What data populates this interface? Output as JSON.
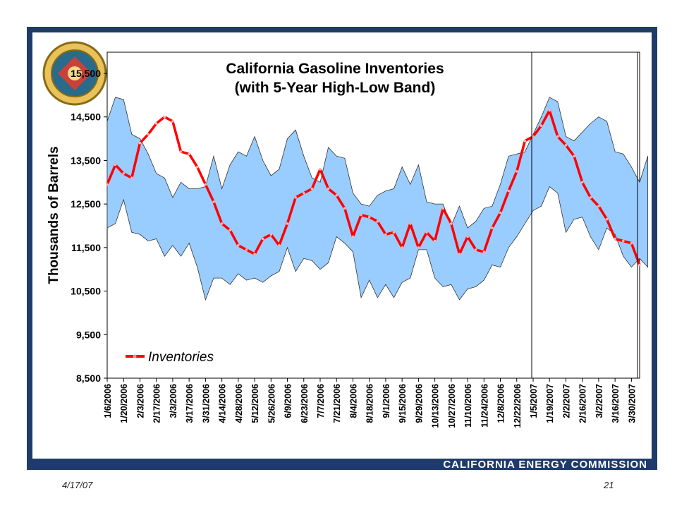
{
  "footer": {
    "date": "4/17/07",
    "page": "21",
    "organization": "CALIFORNIA ENERGY COMMISSION"
  },
  "logo": {
    "icon": "california-energy-commission-seal"
  },
  "colors": {
    "band": "#99ccff",
    "line": "#ff0000",
    "frame": "#1f3b6b"
  },
  "chart_data": {
    "type": "line",
    "title": "California Gasoline Inventories",
    "subtitle": "(with 5-Year High-Low Band)",
    "ylabel": "Thousands of Barrels",
    "xlabel": "",
    "ylim": [
      8500,
      15500
    ],
    "yticks": [
      8500,
      9500,
      10500,
      11500,
      12500,
      13500,
      14500,
      15500
    ],
    "ytick_labels": [
      "8,500",
      "9,500",
      "10,500",
      "11,500",
      "12,500",
      "13,500",
      "14,500",
      "15,500"
    ],
    "xtick_labels": [
      "1/6/2006",
      "1/20/2006",
      "2/3/2006",
      "2/17/2006",
      "3/3/2006",
      "3/17/2006",
      "3/31/2006",
      "4/14/2006",
      "4/28/2006",
      "5/12/2006",
      "5/26/2006",
      "6/9/2006",
      "6/23/2006",
      "7/7/2006",
      "7/21/2006",
      "8/4/2006",
      "8/18/2006",
      "9/1/2006",
      "9/15/2006",
      "9/29/2006",
      "10/13/2006",
      "10/27/2006",
      "11/10/2006",
      "11/24/2006",
      "12/8/2006",
      "12/22/2006",
      "1/5/2007",
      "1/19/2007",
      "2/2/2007",
      "2/16/2007",
      "3/2/2007",
      "3/16/2007",
      "3/30/2007"
    ],
    "x_start": "1/6/2006",
    "x_step_days": 7,
    "band_high": [
      14400,
      14950,
      14900,
      14100,
      14000,
      13650,
      13200,
      13100,
      12650,
      13000,
      12850,
      12850,
      12900,
      13600,
      12850,
      13400,
      13700,
      13600,
      14050,
      13500,
      13150,
      13300,
      14000,
      14200,
      13600,
      13100,
      13000,
      13800,
      13600,
      13550,
      12750,
      12500,
      12450,
      12700,
      12800,
      12850,
      13350,
      12950,
      13400,
      12550,
      12500,
      12500,
      12000,
      12450,
      11950,
      12100,
      12400,
      12450,
      12950,
      13600,
      13650,
      13700,
      14100,
      14500,
      14950,
      14850,
      14050,
      13950,
      14150,
      14350,
      14500,
      14400,
      13700,
      13650,
      13350,
      13000,
      13600
    ],
    "band_low": [
      11950,
      12050,
      12600,
      11850,
      11800,
      11650,
      11700,
      11300,
      11550,
      11300,
      11600,
      11050,
      10300,
      10800,
      10800,
      10650,
      10900,
      10750,
      10800,
      10700,
      10850,
      10950,
      11500,
      10950,
      11250,
      11200,
      11000,
      11150,
      11750,
      11600,
      11400,
      10350,
      10750,
      10350,
      10650,
      10350,
      10700,
      10800,
      11450,
      11450,
      10800,
      10600,
      10650,
      10300,
      10550,
      10600,
      10750,
      11100,
      11050,
      11500,
      11750,
      12050,
      12350,
      12450,
      12900,
      12750,
      11850,
      12150,
      12200,
      11750,
      11450,
      11950,
      11800,
      11300,
      11050,
      11250,
      11050
    ],
    "series": [
      {
        "name": "Inventories",
        "values": [
          12950,
          13400,
          13200,
          13100,
          13900,
          14100,
          14350,
          14500,
          14400,
          13700,
          13650,
          13350,
          12950,
          12550,
          12050,
          11900,
          11550,
          11450,
          11350,
          11700,
          11800,
          11550,
          12050,
          12650,
          12750,
          12850,
          13300,
          12850,
          12700,
          12400,
          11750,
          12250,
          12200,
          12100,
          11800,
          11850,
          11500,
          12050,
          11500,
          11850,
          11650,
          12400,
          12050,
          11350,
          11750,
          11450,
          11400,
          11950,
          12300,
          12800,
          13250,
          13950,
          14050,
          14300,
          14650,
          14050,
          13850,
          13600,
          13000,
          12650,
          12450,
          12150,
          11700,
          11650,
          11600,
          11100
        ]
      }
    ],
    "legend": {
      "position": "bottom-left",
      "label": "Inventories"
    },
    "highlight_box": {
      "from": "1/5/2007",
      "to": "3/30/2007"
    },
    "grid": false
  }
}
